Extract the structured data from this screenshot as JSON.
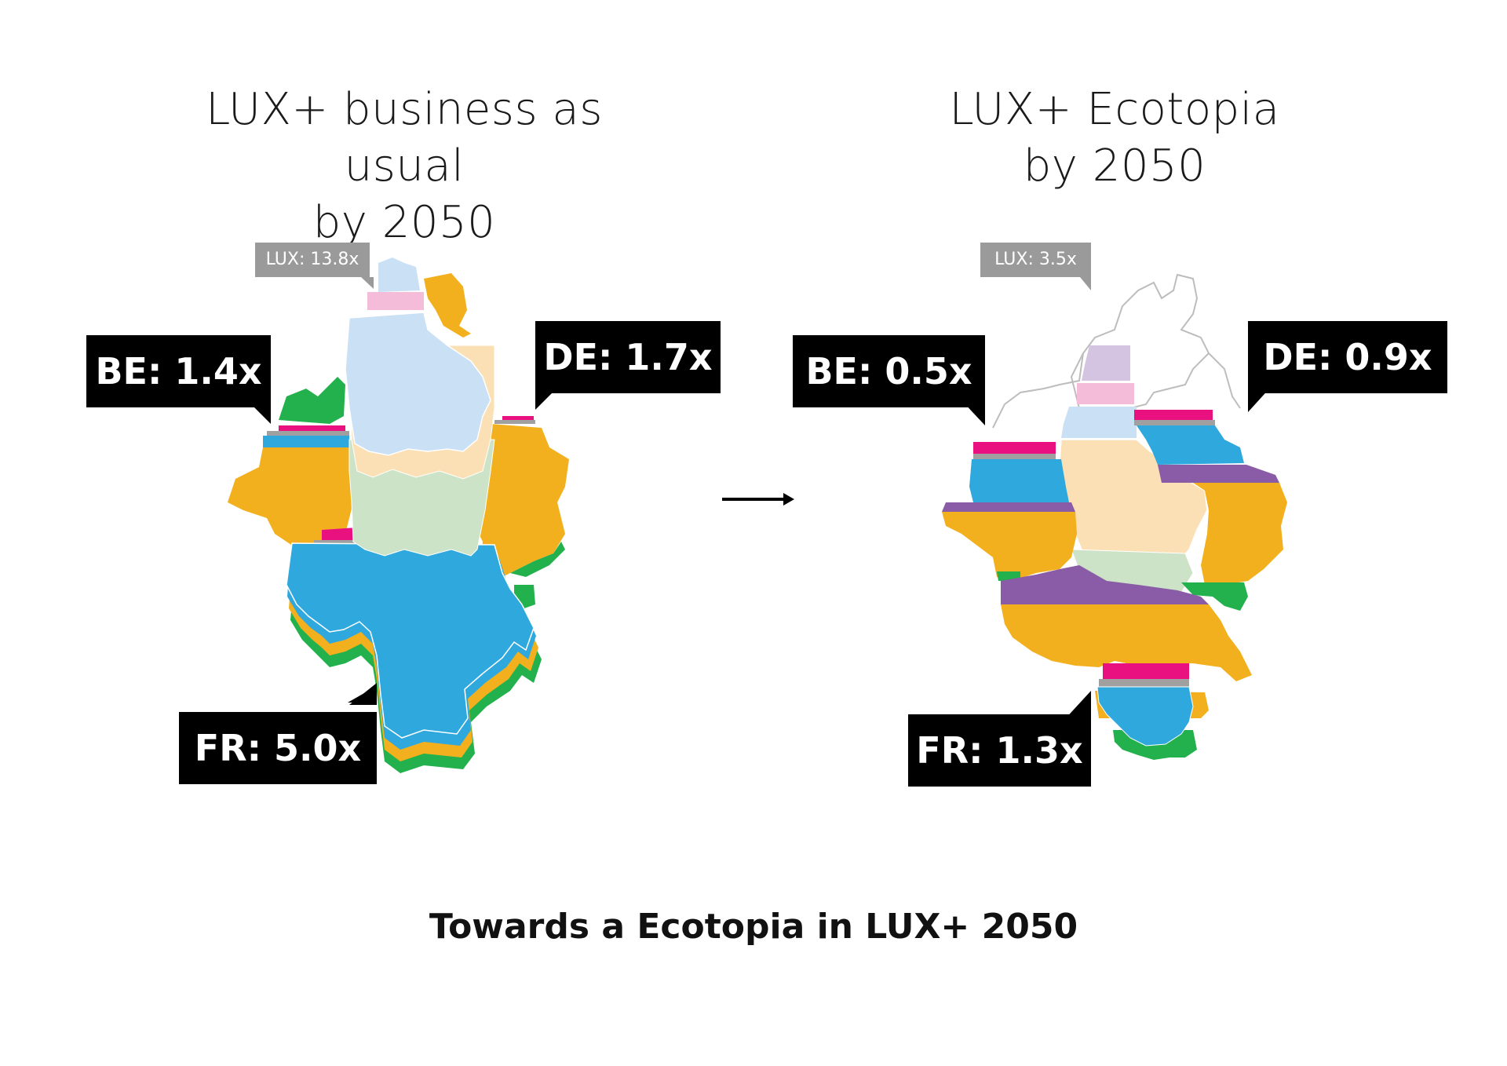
{
  "left_panel": {
    "title_line1": "LUX+ business as usual",
    "title_line2": "by 2050",
    "lux_label": "LUX: 13.8x",
    "be_label": "BE: 1.4x",
    "de_label": "DE: 1.7x",
    "fr_label": "FR: 5.0x"
  },
  "right_panel": {
    "title_line1": "LUX+ Ecotopia",
    "title_line2": "by 2050",
    "lux_label": "LUX: 3.5x",
    "be_label": "BE: 0.5x",
    "de_label": "DE: 0.9x",
    "fr_label": "FR: 1.3x"
  },
  "arrow": "right-arrow-icon",
  "caption": "Towards a Ecotopia in LUX+ 2050",
  "colors": {
    "blue": "#2fa8de",
    "orange": "#f2b01e",
    "green": "#22b14c",
    "magenta": "#e8117f",
    "pink": "#f5bcd9",
    "light_blue": "#c9e0f5",
    "beige": "#fbe0b5",
    "pale_green": "#cce3c8",
    "purple": "#8a5ca8",
    "lavender": "#d4c4e2",
    "gray": "#a0a0a0",
    "label_bg": "#000000",
    "tag_bg": "#9a9a9a"
  }
}
